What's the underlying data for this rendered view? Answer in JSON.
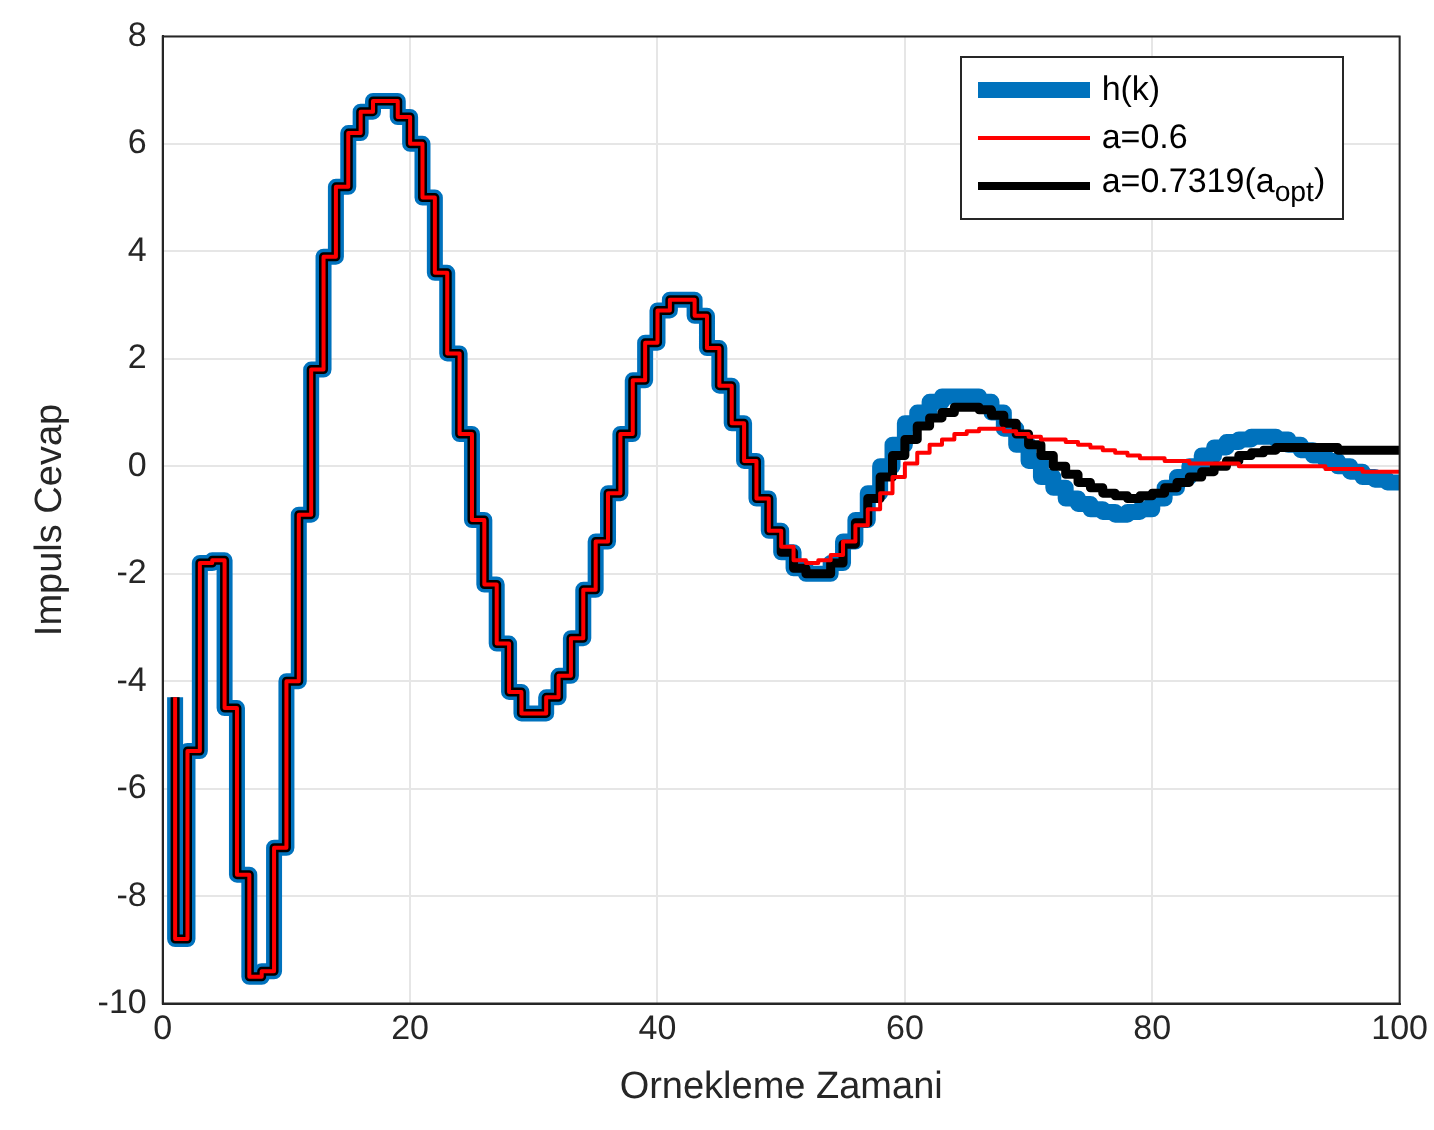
{
  "chart_data": {
    "type": "step",
    "xlabel": "Ornekleme Zamani",
    "ylabel": "Impuls Cevap",
    "x": [
      1,
      2,
      3,
      4,
      5,
      6,
      7,
      8,
      9,
      10,
      11,
      12,
      13,
      14,
      15,
      16,
      17,
      18,
      19,
      20,
      21,
      22,
      23,
      24,
      25,
      26,
      27,
      28,
      29,
      30,
      31,
      32,
      33,
      34,
      35,
      36,
      37,
      38,
      39,
      40,
      41,
      42,
      43,
      44,
      45,
      46,
      47,
      48,
      49,
      50,
      51,
      52,
      53,
      54,
      55,
      56,
      57,
      58,
      59,
      60,
      61,
      62,
      63,
      64,
      65,
      66,
      67,
      68,
      69,
      70,
      71,
      72,
      73,
      74,
      75,
      76,
      77,
      78,
      79,
      80,
      81,
      82,
      83,
      84,
      85,
      86,
      87,
      88,
      89,
      90,
      91,
      92,
      93,
      94,
      95,
      96,
      97,
      98,
      99,
      100
    ],
    "series": [
      {
        "name": "h(k)",
        "color": "#0072bd",
        "values": [
          -4.3,
          -8.8,
          -5.3,
          -1.8,
          -1.75,
          -4.5,
          -7.6,
          -9.5,
          -9.4,
          -7.1,
          -4.0,
          -0.9,
          1.8,
          3.9,
          5.2,
          6.2,
          6.6,
          6.8,
          6.8,
          6.5,
          6.0,
          5.0,
          3.6,
          2.1,
          0.6,
          -1.0,
          -2.2,
          -3.3,
          -4.2,
          -4.6,
          -4.6,
          -4.3,
          -3.9,
          -3.2,
          -2.3,
          -1.4,
          -0.5,
          0.6,
          1.6,
          2.3,
          2.9,
          3.1,
          3.1,
          2.8,
          2.2,
          1.5,
          0.8,
          0.1,
          -0.6,
          -1.2,
          -1.6,
          -1.9,
          -2.0,
          -2.0,
          -1.8,
          -1.4,
          -1.0,
          -0.5,
          0,
          0.4,
          0.8,
          1.0,
          1.2,
          1.3,
          1.3,
          1.3,
          1.2,
          1.0,
          0.7,
          0.4,
          0.1,
          -0.2,
          -0.4,
          -0.6,
          -0.7,
          -0.8,
          -0.85,
          -0.9,
          -0.85,
          -0.8,
          -0.6,
          -0.4,
          -0.2,
          0,
          0.2,
          0.35,
          0.45,
          0.5,
          0.55,
          0.55,
          0.5,
          0.4,
          0.3,
          0.2,
          0.1,
          0,
          -0.1,
          -0.2,
          -0.25,
          -0.3
        ]
      },
      {
        "name": "a=0.6",
        "color": "#ff0000",
        "values": [
          -4.3,
          -8.8,
          -5.3,
          -1.8,
          -1.75,
          -4.5,
          -7.6,
          -9.5,
          -9.4,
          -7.1,
          -4.0,
          -0.9,
          1.8,
          3.9,
          5.2,
          6.2,
          6.6,
          6.8,
          6.8,
          6.5,
          6.0,
          5.0,
          3.6,
          2.1,
          0.6,
          -1.0,
          -2.2,
          -3.3,
          -4.2,
          -4.6,
          -4.6,
          -4.3,
          -3.9,
          -3.2,
          -2.3,
          -1.4,
          -0.5,
          0.6,
          1.6,
          2.3,
          2.9,
          3.1,
          3.1,
          2.8,
          2.2,
          1.5,
          0.8,
          0.1,
          -0.6,
          -1.2,
          -1.5,
          -1.75,
          -1.8,
          -1.75,
          -1.65,
          -1.4,
          -1.1,
          -0.8,
          -0.5,
          -0.2,
          0.05,
          0.25,
          0.4,
          0.5,
          0.6,
          0.65,
          0.7,
          0.7,
          0.65,
          0.6,
          0.55,
          0.5,
          0.5,
          0.45,
          0.4,
          0.35,
          0.3,
          0.25,
          0.2,
          0.15,
          0.15,
          0.1,
          0.1,
          0.05,
          0.05,
          0.05,
          0.05,
          0,
          0,
          0,
          0,
          0,
          0,
          0,
          -0.05,
          -0.05,
          -0.05,
          -0.1,
          -0.1,
          -0.1
        ]
      },
      {
        "name": "a=0.7319(a$_{opt}$)",
        "color": "#000000",
        "values": [
          -4.3,
          -8.8,
          -5.3,
          -1.8,
          -1.75,
          -4.5,
          -7.6,
          -9.5,
          -9.4,
          -7.1,
          -4.0,
          -0.9,
          1.8,
          3.9,
          5.2,
          6.2,
          6.6,
          6.8,
          6.8,
          6.5,
          6.0,
          5.0,
          3.6,
          2.1,
          0.6,
          -1.0,
          -2.2,
          -3.3,
          -4.2,
          -4.6,
          -4.6,
          -4.3,
          -3.9,
          -3.2,
          -2.3,
          -1.4,
          -0.5,
          0.6,
          1.6,
          2.3,
          2.9,
          3.1,
          3.1,
          2.8,
          2.2,
          1.5,
          0.8,
          0.1,
          -0.6,
          -1.2,
          -1.6,
          -1.9,
          -2.0,
          -2.0,
          -1.8,
          -1.45,
          -1.05,
          -0.6,
          -0.2,
          0.2,
          0.5,
          0.75,
          0.9,
          1.0,
          1.1,
          1.1,
          1.05,
          0.95,
          0.8,
          0.6,
          0.4,
          0.2,
          0,
          -0.15,
          -0.3,
          -0.4,
          -0.5,
          -0.55,
          -0.6,
          -0.55,
          -0.5,
          -0.4,
          -0.3,
          -0.2,
          -0.1,
          0,
          0.1,
          0.2,
          0.25,
          0.3,
          0.35,
          0.35,
          0.35,
          0.35,
          0.35,
          0.3,
          0.3,
          0.3,
          0.3,
          0.3
        ]
      }
    ],
    "xlim": [
      0,
      100
    ],
    "xticks": [
      0,
      20,
      40,
      60,
      80,
      100
    ],
    "ylim": [
      -10,
      8
    ],
    "yticks": [
      -10,
      -8,
      -6,
      -4,
      -2,
      0,
      2,
      4,
      6,
      8
    ],
    "grid": true,
    "legend": "top right"
  }
}
